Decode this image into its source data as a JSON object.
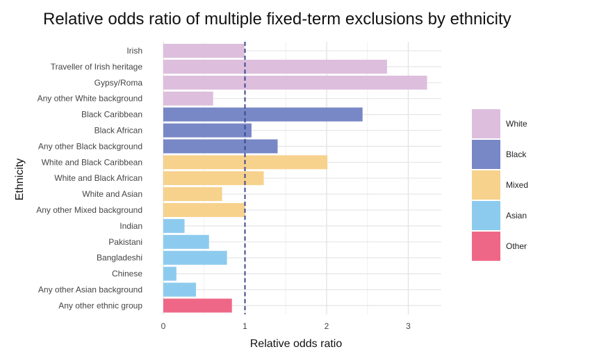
{
  "chart_data": {
    "type": "bar",
    "orientation": "horizontal",
    "title": "Relative odds ratio of multiple fixed-term exclusions by ethnicity",
    "xlabel": "Relative odds ratio",
    "ylabel": "Ethnicity",
    "xlim": [
      0,
      3.4
    ],
    "xticks": [
      0,
      1,
      2,
      3
    ],
    "reference_line": 1,
    "grid": true,
    "legend_position": "right",
    "groups": [
      {
        "name": "White",
        "color": "#DDBEDD"
      },
      {
        "name": "Black",
        "color": "#7887C6"
      },
      {
        "name": "Mixed",
        "color": "#F7D28D"
      },
      {
        "name": "Asian",
        "color": "#8DCBEE"
      },
      {
        "name": "Other",
        "color": "#EF6787"
      }
    ],
    "categories": [
      "Irish",
      "Traveller of Irish heritage",
      "Gypsy/Roma",
      "Any other White background",
      "Black Caribbean",
      "Black African",
      "Any other Black background",
      "White and Black Caribbean",
      "White and Black African",
      "White and Asian",
      "Any other Mixed background",
      "Indian",
      "Pakistani",
      "Bangladeshi",
      "Chinese",
      "Any other Asian background",
      "Any other ethnic group"
    ],
    "values": [
      0.99,
      2.74,
      3.23,
      0.61,
      2.44,
      1.08,
      1.4,
      2.01,
      1.23,
      0.72,
      1.0,
      0.26,
      0.56,
      0.78,
      0.16,
      0.4,
      0.84
    ],
    "value_groups": [
      "White",
      "White",
      "White",
      "White",
      "Black",
      "Black",
      "Black",
      "Mixed",
      "Mixed",
      "Mixed",
      "Mixed",
      "Asian",
      "Asian",
      "Asian",
      "Asian",
      "Asian",
      "Other"
    ]
  }
}
